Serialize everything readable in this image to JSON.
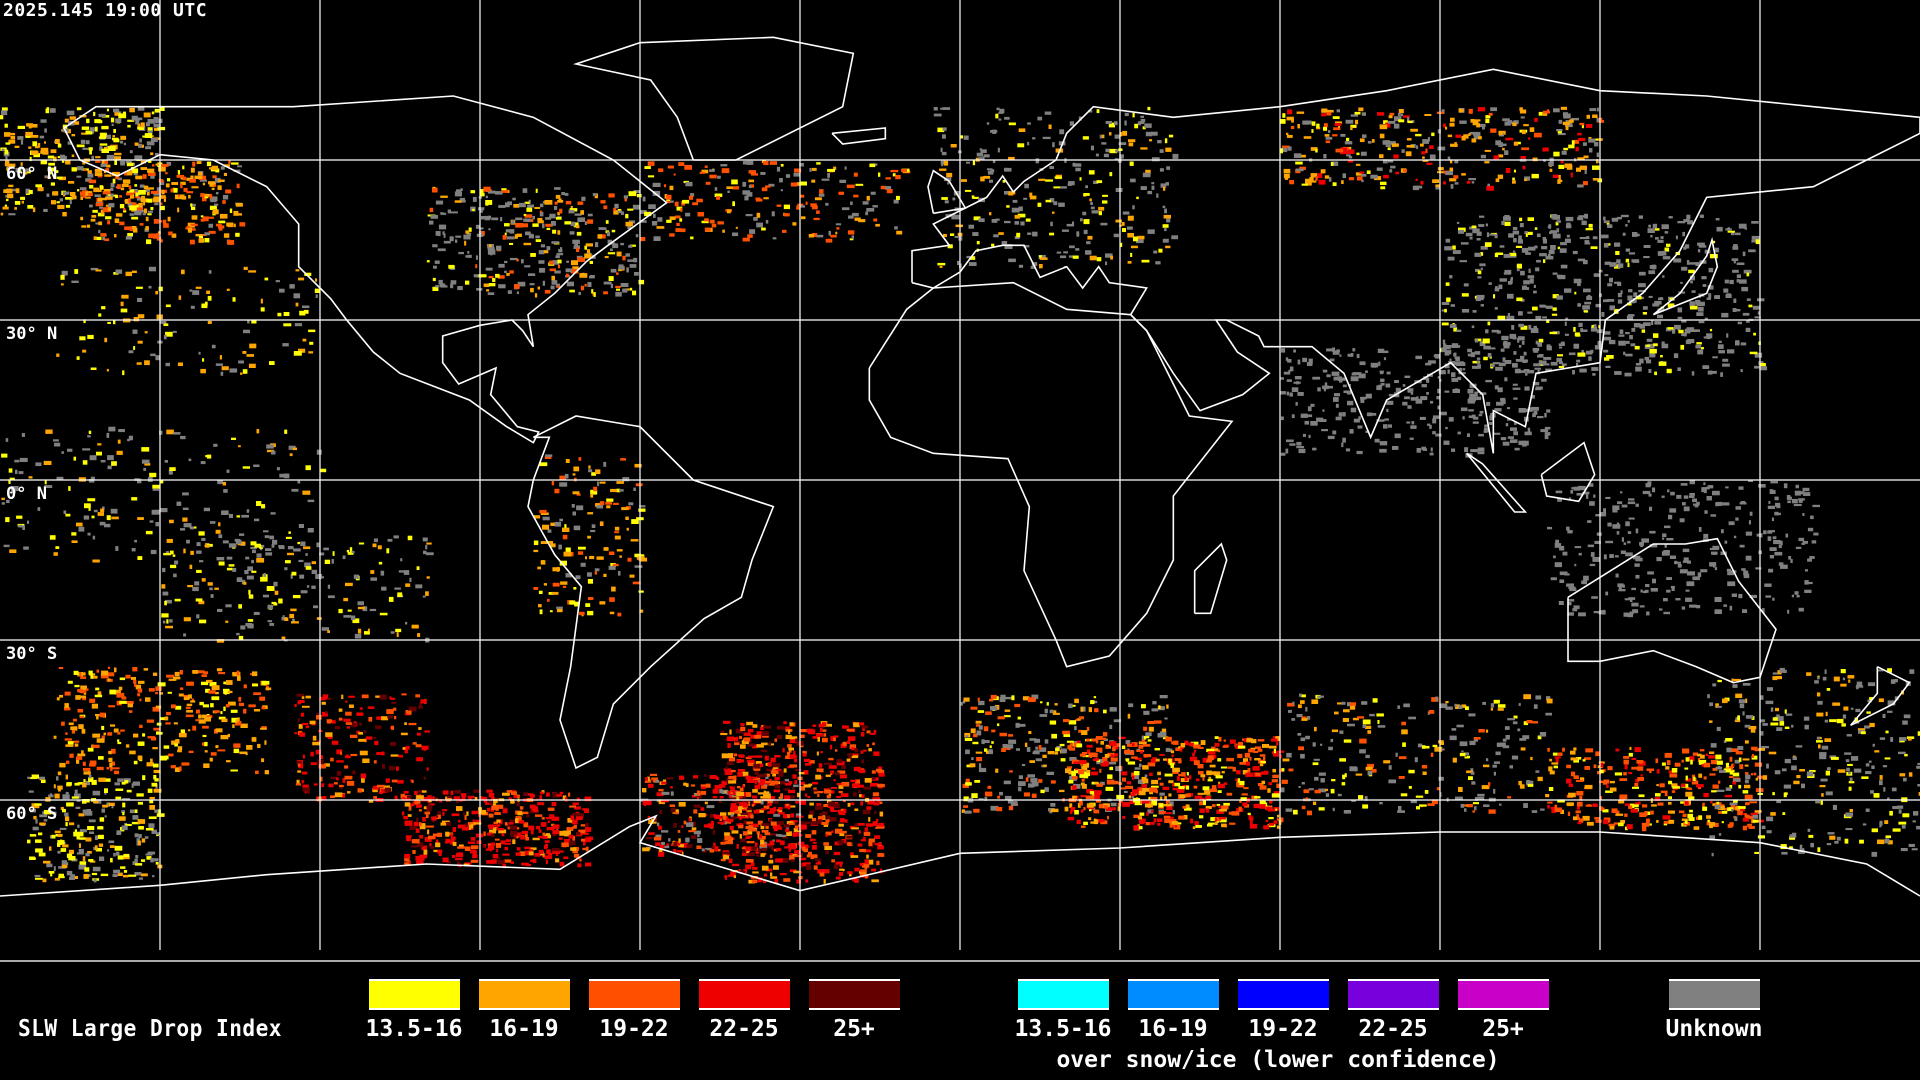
{
  "header": {
    "timestamp": "2025.145 19:00 UTC"
  },
  "map": {
    "projection": "equirectangular",
    "grid_spacing_degrees": 30,
    "lat_labels": [
      "60° N",
      "30° N",
      "0° N",
      "30° S",
      "60° S"
    ],
    "colors": {
      "background": "#000000",
      "coastline": "#ffffff",
      "grid": "#ffffff",
      "unknown": "#808080"
    }
  },
  "legend": {
    "title": "SLW Large Drop Index",
    "primary": [
      {
        "label": "13.5-16",
        "color": "#ffff00"
      },
      {
        "label": "16-19",
        "color": "#ffa500"
      },
      {
        "label": "19-22",
        "color": "#ff5000"
      },
      {
        "label": "22-25",
        "color": "#ee0000"
      },
      {
        "label": "25+",
        "color": "#640000"
      }
    ],
    "snow_ice": [
      {
        "label": "13.5-16",
        "color": "#00ffff"
      },
      {
        "label": "16-19",
        "color": "#008cff"
      },
      {
        "label": "19-22",
        "color": "#0000ff"
      },
      {
        "label": "22-25",
        "color": "#7800dc"
      },
      {
        "label": "25+",
        "color": "#c800c8"
      }
    ],
    "snow_ice_caption": "over snow/ice (lower confidence)",
    "unknown": {
      "label": "Unknown",
      "color": "#808080"
    }
  }
}
